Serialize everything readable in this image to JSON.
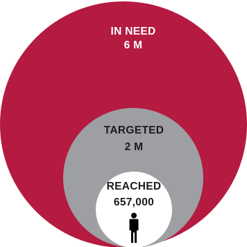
{
  "colors": {
    "in_need": "#B51A41",
    "targeted": "#9E9FA2",
    "reached": "#FFFFFF",
    "text_light": "#FFFFFF",
    "text_dark": "#1B1B1B",
    "person_icon": "#000000"
  },
  "circles": {
    "in_need": {
      "title": "IN NEED",
      "value": "6 M"
    },
    "targeted": {
      "title": "TARGETED",
      "value": "2 M"
    },
    "reached": {
      "title": "REACHED",
      "value": "657,000",
      "icon": "person-icon"
    }
  }
}
